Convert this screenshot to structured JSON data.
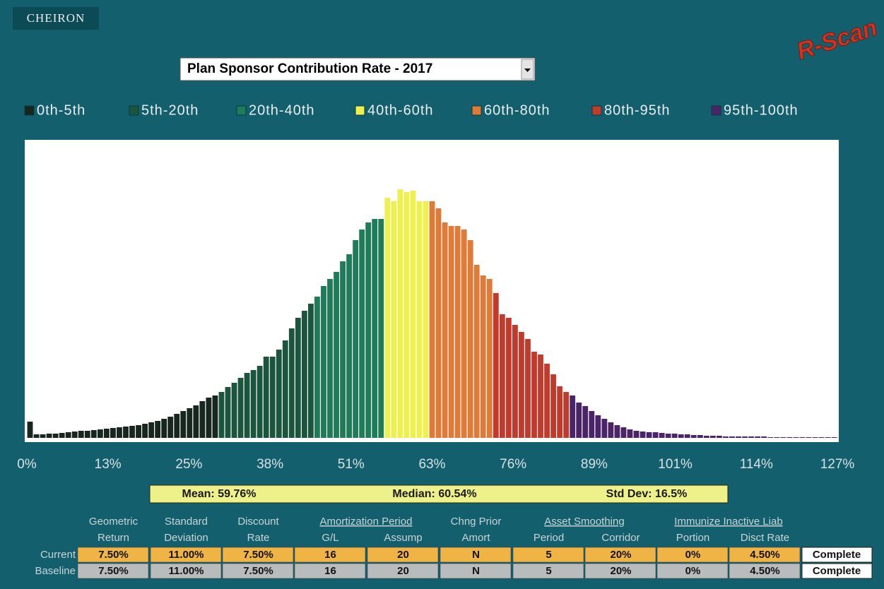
{
  "header": {
    "logo": "CHEIRON",
    "brand": "R-Scan"
  },
  "dropdown": "Plan Sponsor Contribution Rate - 2017",
  "chart_data": {
    "type": "histogram",
    "legend": [
      {
        "name": "0th-5th",
        "color": "#17261f"
      },
      {
        "name": "5th-20th",
        "color": "#1c553d"
      },
      {
        "name": "20th-40th",
        "color": "#1f7c58"
      },
      {
        "name": "40th-60th",
        "color": "#eef050"
      },
      {
        "name": "60th-80th",
        "color": "#e07a38"
      },
      {
        "name": "80th-95th",
        "color": "#c23a2c"
      },
      {
        "name": "95th-100th",
        "color": "#4a2466"
      }
    ],
    "bins": [
      0,
      1,
      2,
      3,
      4,
      5,
      6,
      7,
      8,
      9,
      10,
      11,
      12,
      13,
      14,
      15,
      16,
      17,
      18,
      19,
      20,
      21,
      22,
      23,
      24,
      25,
      26,
      27,
      28,
      29,
      30,
      31,
      32,
      33,
      34,
      35,
      36,
      37,
      38,
      39,
      40,
      41,
      42,
      43,
      44,
      45,
      46,
      47,
      48,
      49,
      50,
      51,
      52,
      53,
      54,
      55,
      56,
      57,
      58,
      59,
      60,
      61,
      62,
      63,
      64,
      65,
      66,
      67,
      68,
      69,
      70,
      71,
      72,
      73,
      74,
      75,
      76,
      77,
      78,
      79,
      80,
      81,
      82,
      83,
      84,
      85,
      86,
      87,
      88,
      89,
      90,
      91,
      92,
      93,
      94,
      95,
      96,
      97,
      98,
      99,
      100,
      101,
      102,
      103,
      104,
      105,
      106,
      107,
      108,
      109,
      110,
      111,
      112,
      113,
      114,
      115,
      116,
      117,
      118,
      119,
      120,
      121,
      122,
      123,
      124,
      125,
      126,
      127
    ],
    "values": [
      23,
      5,
      5,
      6,
      6,
      7,
      8,
      9,
      10,
      10,
      11,
      12,
      13,
      14,
      15,
      16,
      17,
      18,
      20,
      22,
      24,
      27,
      30,
      34,
      38,
      42,
      46,
      52,
      57,
      60,
      65,
      72,
      78,
      85,
      92,
      96,
      102,
      115,
      115,
      125,
      138,
      155,
      170,
      180,
      190,
      200,
      215,
      225,
      235,
      250,
      260,
      280,
      295,
      305,
      310,
      310,
      340,
      335,
      352,
      348,
      350,
      335,
      335,
      335,
      325,
      305,
      300,
      300,
      295,
      280,
      245,
      230,
      225,
      205,
      175,
      170,
      160,
      150,
      140,
      122,
      118,
      105,
      90,
      73,
      65,
      60,
      50,
      45,
      38,
      32,
      27,
      22,
      18,
      15,
      12,
      10,
      9,
      8,
      8,
      7,
      6,
      6,
      5,
      5,
      4,
      4,
      3,
      3,
      3,
      2,
      2,
      2,
      2,
      2,
      2,
      2,
      1,
      1,
      1,
      1,
      1,
      1,
      1,
      1,
      1,
      1,
      1
    ],
    "colors": [
      "#17261f",
      "#17261f",
      "#17261f",
      "#17261f",
      "#17261f",
      "#17261f",
      "#17261f",
      "#17261f",
      "#17261f",
      "#17261f",
      "#17261f",
      "#17261f",
      "#17261f",
      "#17261f",
      "#17261f",
      "#17261f",
      "#17261f",
      "#17261f",
      "#17261f",
      "#17261f",
      "#17261f",
      "#17261f",
      "#17261f",
      "#17261f",
      "#17261f",
      "#17261f",
      "#17261f",
      "#17261f",
      "#17261f",
      "#17261f",
      "#1c553d",
      "#1c553d",
      "#1c553d",
      "#1c553d",
      "#1c553d",
      "#1c553d",
      "#1c553d",
      "#1c553d",
      "#1c553d",
      "#1c553d",
      "#1c553d",
      "#1c553d",
      "#1c553d",
      "#1c553d",
      "#1c553d",
      "#1f7c58",
      "#1f7c58",
      "#1f7c58",
      "#1f7c58",
      "#1f7c58",
      "#1f7c58",
      "#1f7c58",
      "#1f7c58",
      "#1f7c58",
      "#1f7c58",
      "#1f7c58",
      "#eef050",
      "#eef050",
      "#eef050",
      "#eef050",
      "#eef050",
      "#eef050",
      "#eef050",
      "#e07a38",
      "#e07a38",
      "#e07a38",
      "#e07a38",
      "#e07a38",
      "#e07a38",
      "#e07a38",
      "#e07a38",
      "#e07a38",
      "#e07a38",
      "#c23a2c",
      "#c23a2c",
      "#c23a2c",
      "#c23a2c",
      "#c23a2c",
      "#c23a2c",
      "#c23a2c",
      "#c23a2c",
      "#c23a2c",
      "#c23a2c",
      "#c23a2c",
      "#c23a2c",
      "#4a2466",
      "#4a2466",
      "#4a2466",
      "#4a2466",
      "#4a2466",
      "#4a2466",
      "#4a2466",
      "#4a2466",
      "#4a2466",
      "#4a2466",
      "#4a2466",
      "#4a2466",
      "#4a2466",
      "#4a2466",
      "#4a2466",
      "#4a2466",
      "#4a2466",
      "#4a2466",
      "#4a2466",
      "#4a2466",
      "#4a2466",
      "#4a2466",
      "#4a2466",
      "#4a2466",
      "#4a2466",
      "#4a2466",
      "#4a2466",
      "#4a2466",
      "#4a2466",
      "#4a2466",
      "#4a2466",
      "#4a2466",
      "#4a2466",
      "#4a2466",
      "#4a2466",
      "#4a2466",
      "#4a2466",
      "#4a2466",
      "#4a2466",
      "#4a2466",
      "#4a2466",
      "#4a2466"
    ],
    "xlim": [
      0,
      127
    ],
    "ylim": [
      0,
      420
    ],
    "xticks": [
      {
        "value": 0,
        "label": "0%"
      },
      {
        "value": 12.7,
        "label": "13%"
      },
      {
        "value": 25.4,
        "label": "25%"
      },
      {
        "value": 38.1,
        "label": "38%"
      },
      {
        "value": 50.8,
        "label": "51%"
      },
      {
        "value": 63.5,
        "label": "63%"
      },
      {
        "value": 76.2,
        "label": "76%"
      },
      {
        "value": 88.9,
        "label": "89%"
      },
      {
        "value": 101.6,
        "label": "101%"
      },
      {
        "value": 114.3,
        "label": "114%"
      },
      {
        "value": 127,
        "label": "127%"
      }
    ]
  },
  "stats": [
    "Mean: 59.76%",
    "Median: 60.54%",
    "Std Dev: 16.5%"
  ],
  "table": {
    "headers": [
      {
        "top": "Geometric",
        "bottom": "Return"
      },
      {
        "top": "Standard",
        "bottom": "Deviation"
      },
      {
        "top": "Discount",
        "bottom": "Rate"
      },
      {
        "group": "Amortization Period",
        "subs": [
          "G/L",
          "Assump"
        ]
      },
      {
        "top": "Chng Prior",
        "bottom": "Amort"
      },
      {
        "group": "Asset Smoothing",
        "subs": [
          "Period",
          "Corridor"
        ]
      },
      {
        "group": "Immunize Inactive Liab",
        "subs": [
          "Portion",
          "Disct Rate"
        ]
      }
    ],
    "rows": [
      {
        "label": "Current",
        "cells": [
          "7.50%",
          "11.00%",
          "7.50%",
          "16",
          "20",
          "N",
          "5",
          "20%",
          "0%",
          "4.50%"
        ],
        "status": "Complete"
      },
      {
        "label": "Baseline",
        "cells": [
          "7.50%",
          "11.00%",
          "7.50%",
          "16",
          "20",
          "N",
          "5",
          "20%",
          "0%",
          "4.50%"
        ],
        "status": "Complete"
      }
    ]
  }
}
